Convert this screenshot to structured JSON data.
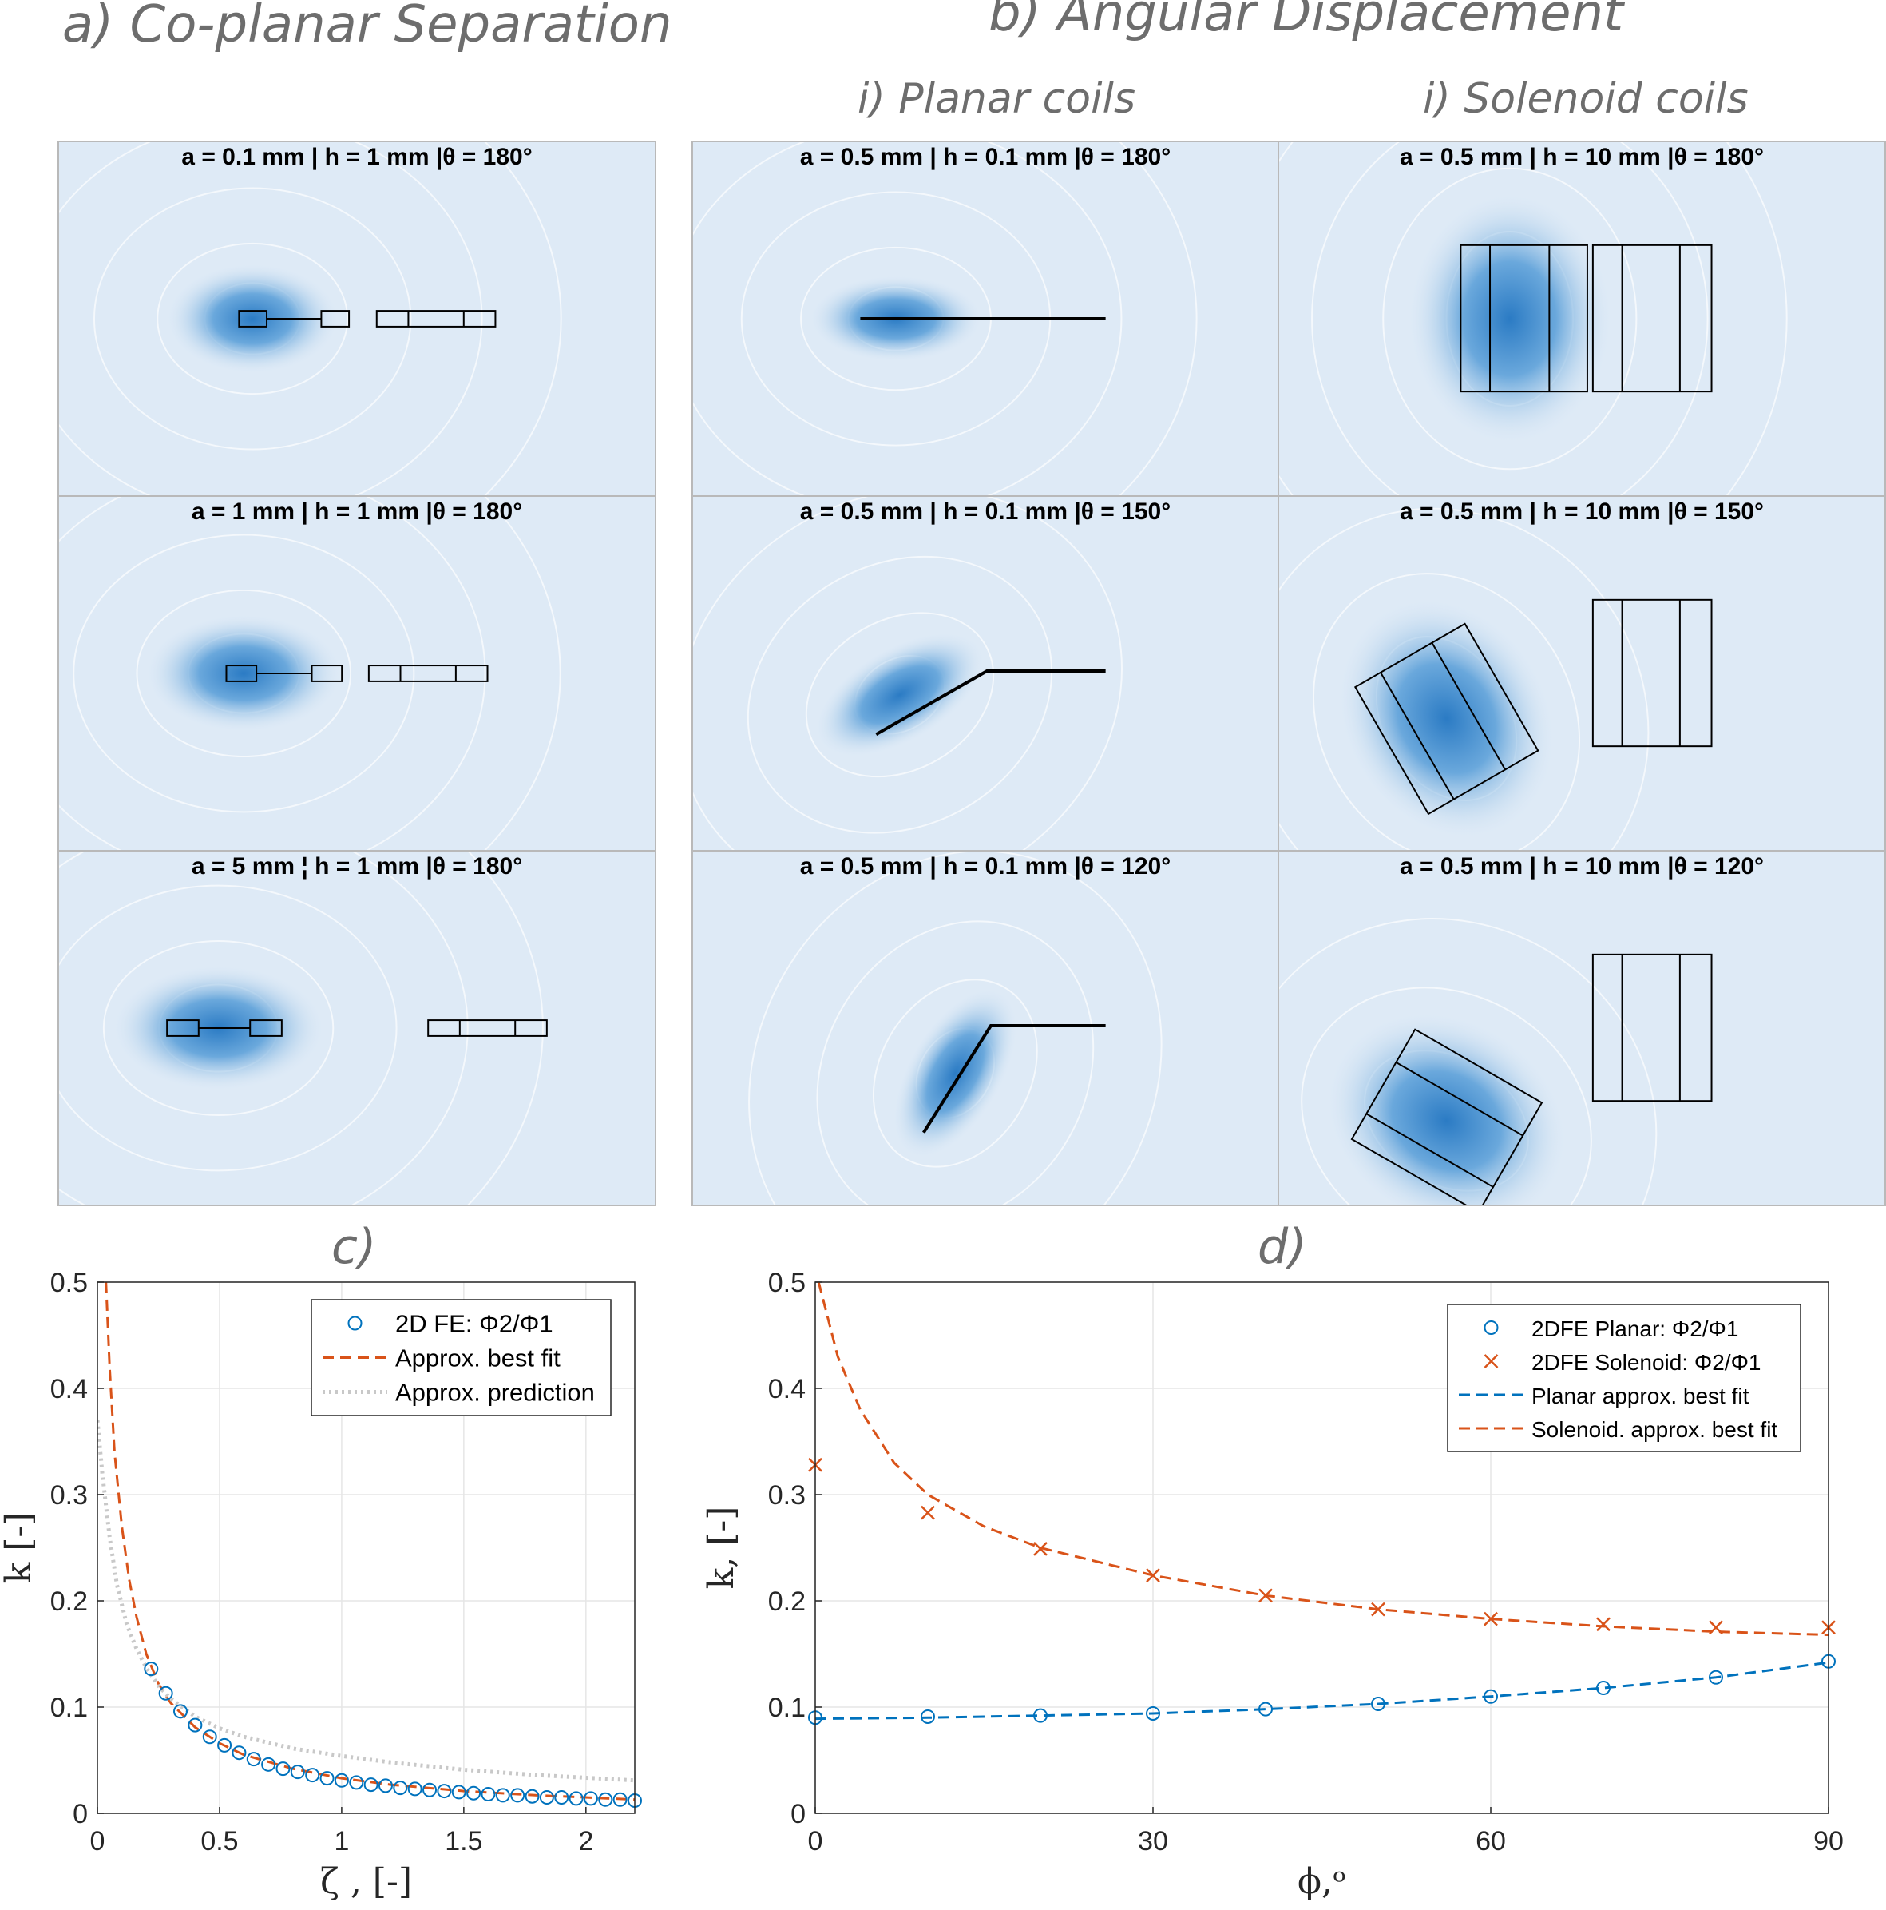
{
  "headings": {
    "a": "a) Co-planar Separation",
    "b": "b) Angular Displacement",
    "bi": "i) Planar coils",
    "bii": "i) Solenoid coils",
    "c": "c)",
    "d": "d)"
  },
  "panels": {
    "a1": "a = 0.1 mm | h = 1 mm |θ = 180°",
    "a2": "a = 1 mm | h = 1 mm |θ = 180°",
    "a3": "a = 5 mm ¦ h = 1 mm |θ = 180°",
    "p1": "a = 0.5 mm | h = 0.1 mm |θ = 180°",
    "p2": "a = 0.5 mm | h = 0.1 mm |θ = 150°",
    "p3": "a = 0.5 mm | h = 0.1 mm |θ = 120°",
    "s1": "a = 0.5 mm | h = 10 mm |θ = 180°",
    "s2": "a = 0.5 mm | h = 10 mm |θ = 150°",
    "s3": "a = 0.5 mm | h = 10 mm |θ = 120°"
  },
  "colors": {
    "blue": "#0072bd",
    "orange": "#d95319",
    "grey": "#c8c8c8",
    "field_bg": "#deeaf6",
    "field_core": "#2b7bc4"
  },
  "chart_data": [
    {
      "type": "line",
      "title": "c)",
      "xlabel": "ζ , [-]",
      "ylabel": "k [-]",
      "xlim": [
        0,
        2.2
      ],
      "ylim": [
        0,
        0.5
      ],
      "xticks": [
        "0",
        "0.5",
        "1",
        "1.5",
        "2"
      ],
      "yticks": [
        "0",
        "0.1",
        "0.2",
        "0.3",
        "0.4",
        "0.5"
      ],
      "grid": true,
      "legend_position": "top-right",
      "series": [
        {
          "name": "2D FE: Φ2/Φ1",
          "style": "markers-circle",
          "color": "#0072bd",
          "x": [
            0.22,
            0.28,
            0.34,
            0.4,
            0.46,
            0.52,
            0.58,
            0.64,
            0.7,
            0.76,
            0.82,
            0.88,
            0.94,
            1.0,
            1.06,
            1.12,
            1.18,
            1.24,
            1.3,
            1.36,
            1.42,
            1.48,
            1.54,
            1.6,
            1.66,
            1.72,
            1.78,
            1.84,
            1.9,
            1.96,
            2.02,
            2.08,
            2.14,
            2.2
          ],
          "y": [
            0.136,
            0.113,
            0.096,
            0.083,
            0.072,
            0.064,
            0.057,
            0.051,
            0.046,
            0.042,
            0.039,
            0.036,
            0.033,
            0.031,
            0.029,
            0.027,
            0.026,
            0.024,
            0.023,
            0.022,
            0.021,
            0.02,
            0.019,
            0.018,
            0.017,
            0.017,
            0.016,
            0.015,
            0.015,
            0.014,
            0.014,
            0.013,
            0.013,
            0.012
          ]
        },
        {
          "name": "Approx. best fit",
          "style": "dashed",
          "color": "#d95319",
          "x": [
            0.035,
            0.05,
            0.07,
            0.1,
            0.13,
            0.16,
            0.2,
            0.25,
            0.3,
            0.4,
            0.5,
            0.6,
            0.8,
            1.0,
            1.2,
            1.5,
            1.8,
            2.2
          ],
          "y": [
            0.5,
            0.42,
            0.34,
            0.27,
            0.22,
            0.185,
            0.15,
            0.122,
            0.104,
            0.081,
            0.066,
            0.055,
            0.042,
            0.033,
            0.027,
            0.021,
            0.017,
            0.013
          ]
        },
        {
          "name": "Approx. prediction",
          "style": "dotted",
          "color": "#c8c8c8",
          "x": [
            0.0,
            0.02,
            0.05,
            0.08,
            0.12,
            0.16,
            0.2,
            0.25,
            0.3,
            0.4,
            0.5,
            0.6,
            0.8,
            1.0,
            1.2,
            1.5,
            1.8,
            2.2
          ],
          "y": [
            0.37,
            0.32,
            0.26,
            0.215,
            0.178,
            0.155,
            0.137,
            0.12,
            0.108,
            0.091,
            0.08,
            0.072,
            0.061,
            0.054,
            0.048,
            0.041,
            0.036,
            0.031
          ]
        }
      ]
    },
    {
      "type": "line",
      "title": "d)",
      "xlabel": "ϕ,ᵒ",
      "ylabel": "k, [-]",
      "xlim": [
        0,
        90
      ],
      "ylim": [
        0,
        0.5
      ],
      "xticks": [
        "0",
        "30",
        "60",
        "90"
      ],
      "yticks": [
        "0",
        "0.1",
        "0.2",
        "0.3",
        "0.4",
        "0.5"
      ],
      "grid": true,
      "legend_position": "top-right",
      "series": [
        {
          "name": "2DFE Planar: Φ2/Φ1",
          "style": "markers-circle",
          "color": "#0072bd",
          "x": [
            0,
            10,
            20,
            30,
            40,
            50,
            60,
            70,
            80,
            90
          ],
          "y": [
            0.09,
            0.091,
            0.092,
            0.094,
            0.098,
            0.103,
            0.11,
            0.118,
            0.128,
            0.143
          ]
        },
        {
          "name": "2DFE Solenoid: Φ2/Φ1",
          "style": "markers-x",
          "color": "#d95319",
          "x": [
            0,
            10,
            20,
            30,
            40,
            50,
            60,
            70,
            80,
            90
          ],
          "y": [
            0.328,
            0.283,
            0.249,
            0.224,
            0.205,
            0.192,
            0.183,
            0.178,
            0.175,
            0.175
          ]
        },
        {
          "name": "Planar approx. best fit",
          "style": "dashed",
          "color": "#0072bd",
          "x": [
            0,
            10,
            20,
            30,
            40,
            50,
            60,
            70,
            80,
            90
          ],
          "y": [
            0.089,
            0.09,
            0.092,
            0.094,
            0.098,
            0.103,
            0.11,
            0.118,
            0.128,
            0.142
          ]
        },
        {
          "name": "Solenoid. approx. best fit",
          "style": "dashed",
          "color": "#d95319",
          "x": [
            0.3,
            2,
            4,
            7,
            10,
            15,
            20,
            30,
            40,
            50,
            60,
            70,
            80,
            90
          ],
          "y": [
            0.5,
            0.43,
            0.38,
            0.33,
            0.3,
            0.27,
            0.25,
            0.224,
            0.205,
            0.192,
            0.183,
            0.176,
            0.171,
            0.168
          ]
        }
      ]
    }
  ]
}
